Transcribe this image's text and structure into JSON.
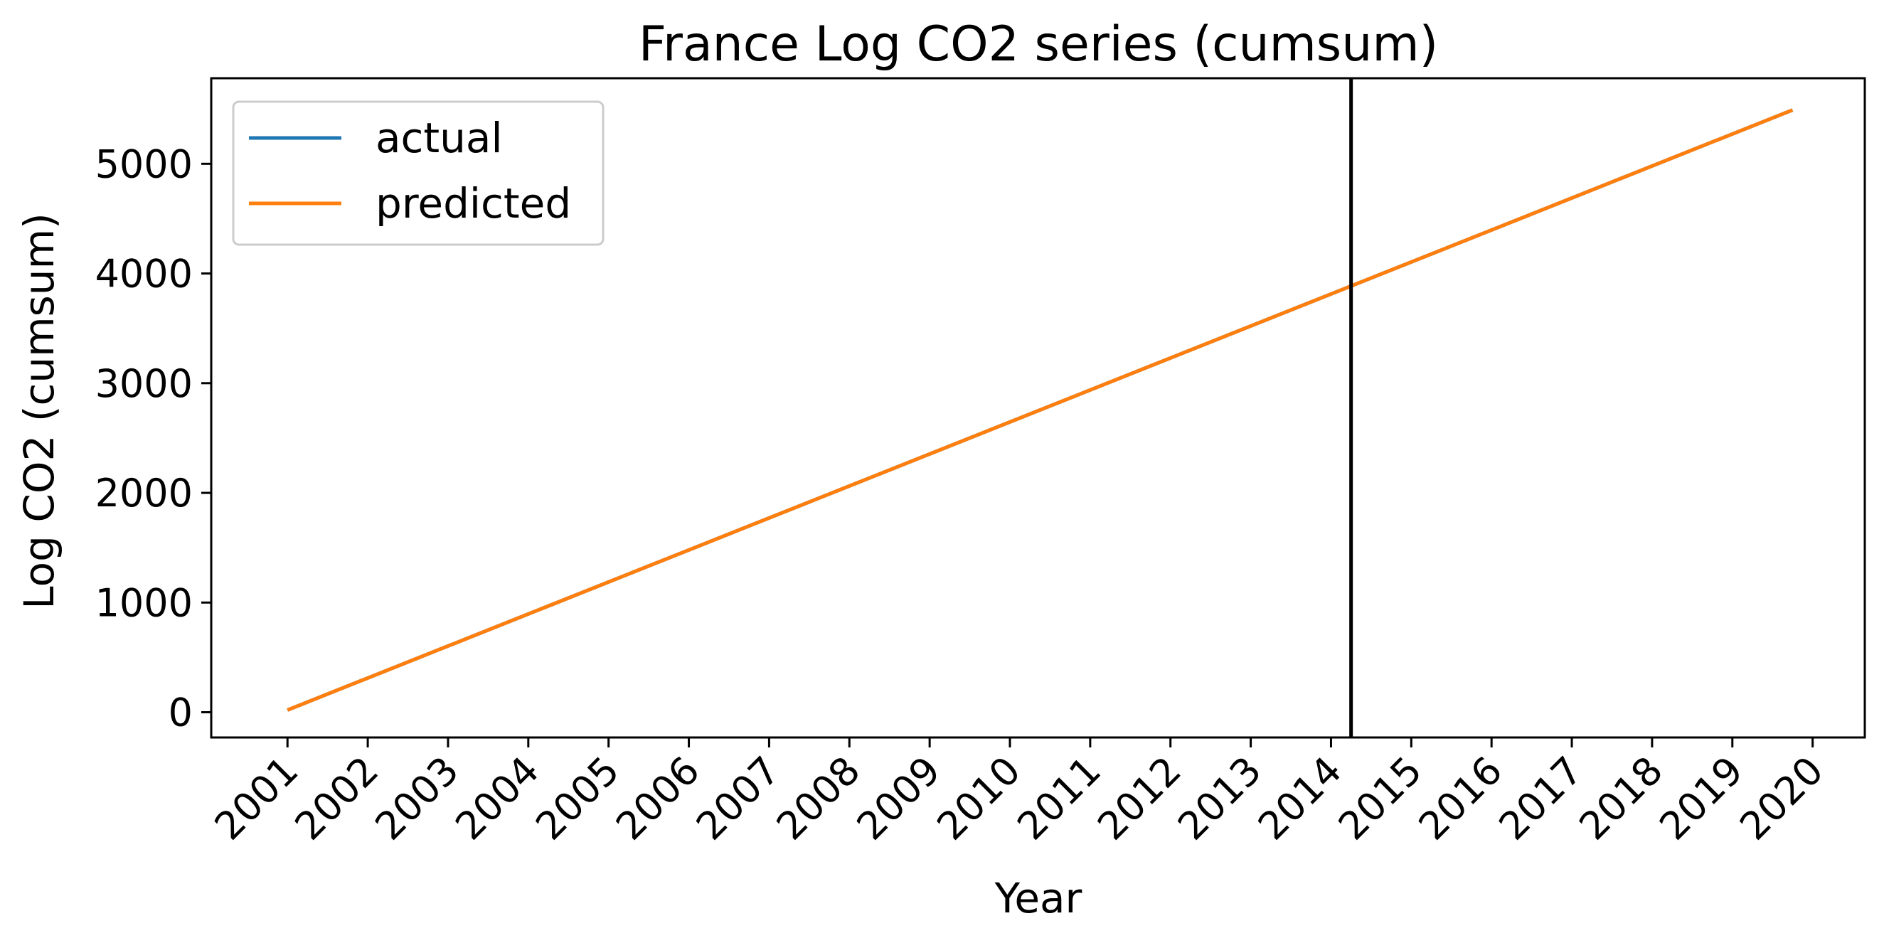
{
  "chart_data": {
    "type": "line",
    "title": "France Log CO2 series (cumsum)",
    "xlabel": "Year",
    "ylabel": "Log CO2 (cumsum)",
    "x_tick_labels": [
      "2001",
      "2002",
      "2003",
      "2004",
      "2005",
      "2006",
      "2007",
      "2008",
      "2009",
      "2010",
      "2011",
      "2012",
      "2013",
      "2014",
      "2015",
      "2016",
      "2017",
      "2018",
      "2019",
      "2020"
    ],
    "x_ticks": [
      2001,
      2002,
      2003,
      2004,
      2005,
      2006,
      2007,
      2008,
      2009,
      2010,
      2011,
      2012,
      2013,
      2014,
      2015,
      2016,
      2017,
      2018,
      2019,
      2020
    ],
    "y_ticks": [
      0,
      1000,
      2000,
      3000,
      4000,
      5000
    ],
    "xlim": [
      2000.05,
      2020.65
    ],
    "ylim": [
      -230,
      5780
    ],
    "grid": false,
    "legend_position": "upper-left",
    "series": [
      {
        "name": "actual",
        "color": "#1f77b4",
        "x": [
          2001,
          2019.75
        ],
        "y": [
          20,
          5490
        ]
      },
      {
        "name": "predicted",
        "color": "#ff7f0e",
        "x": [
          2001,
          2019.75
        ],
        "y": [
          20,
          5490
        ]
      }
    ],
    "vertical_line": {
      "x": 2014.25,
      "color": "#000000"
    }
  }
}
